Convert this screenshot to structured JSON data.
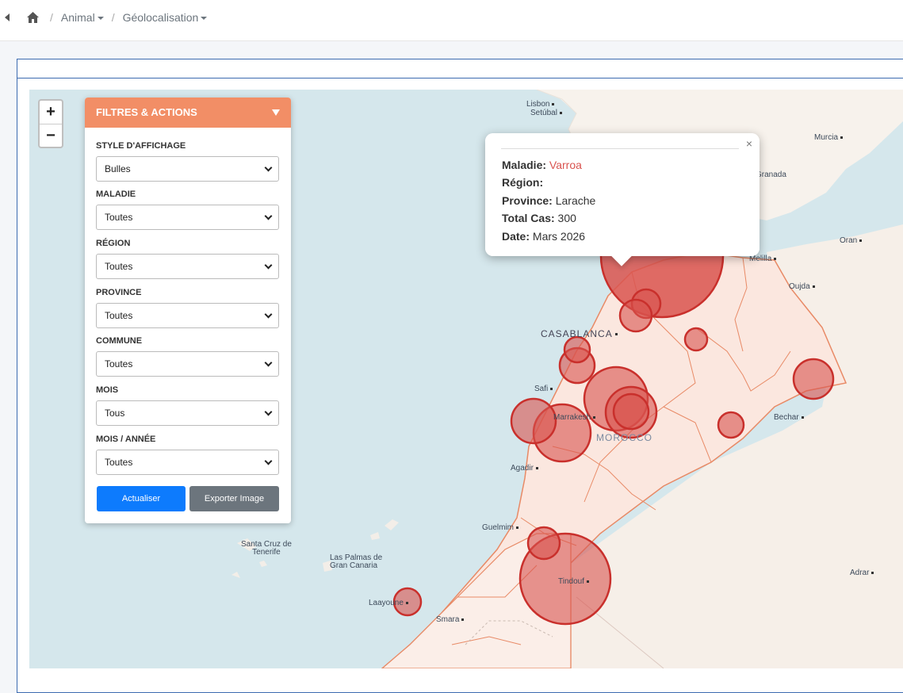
{
  "breadcrumb": {
    "items": [
      {
        "label": "Animal"
      },
      {
        "label": "Géolocalisation"
      }
    ]
  },
  "panel": {
    "title": "FILTRES & ACTIONS",
    "filters": [
      {
        "label": "STYLE D'AFFICHAGE",
        "value": "Bulles"
      },
      {
        "label": "MALADIE",
        "value": "Toutes"
      },
      {
        "label": "RÉGION",
        "value": "Toutes"
      },
      {
        "label": "PROVINCE",
        "value": "Toutes"
      },
      {
        "label": "COMMUNE",
        "value": "Toutes"
      },
      {
        "label": "MOIS",
        "value": "Tous"
      },
      {
        "label": "MOIS / ANNÉE",
        "value": "Toutes"
      }
    ],
    "refresh_label": "Actualiser",
    "export_label": "Exporter Image"
  },
  "zoom": {
    "in": "+",
    "out": "−"
  },
  "popup": {
    "maladie_label": "Maladie:",
    "maladie_value": "Varroa",
    "region_label": "Région:",
    "province_label": "Province:",
    "province_value": "Larache",
    "total_label": "Total Cas:",
    "total_value": "300",
    "date_label": "Date:",
    "date_value": "Mars 2026",
    "close": "×"
  },
  "map_labels": {
    "lisbon": "Lisbon",
    "setubal": "Setúbal",
    "murcia": "Murcia",
    "granada": "Granada",
    "oran": "Oran",
    "melilla": "Melilla",
    "oujda": "Oujda",
    "casablanca": "CASABLANCA",
    "safi": "Safi",
    "marrakesh": "Marrakesh",
    "morocco": "MOROCCO",
    "agadir": "Agadir",
    "bechar": "Bechar",
    "guelmim": "Guelmim",
    "santa_cruz": "Santa Cruz de\nTenerife",
    "las_palmas": "Las Palmas de\nGran Canaria",
    "tindouf": "Tindouf",
    "laayoune": "Laayoune",
    "smara": "Smara",
    "adrar": "Adrar"
  },
  "colors": {
    "bubble": "#d9534f",
    "panel_header": "#f28e66",
    "primary": "#0d7bfd",
    "secondary": "#6c757d"
  }
}
